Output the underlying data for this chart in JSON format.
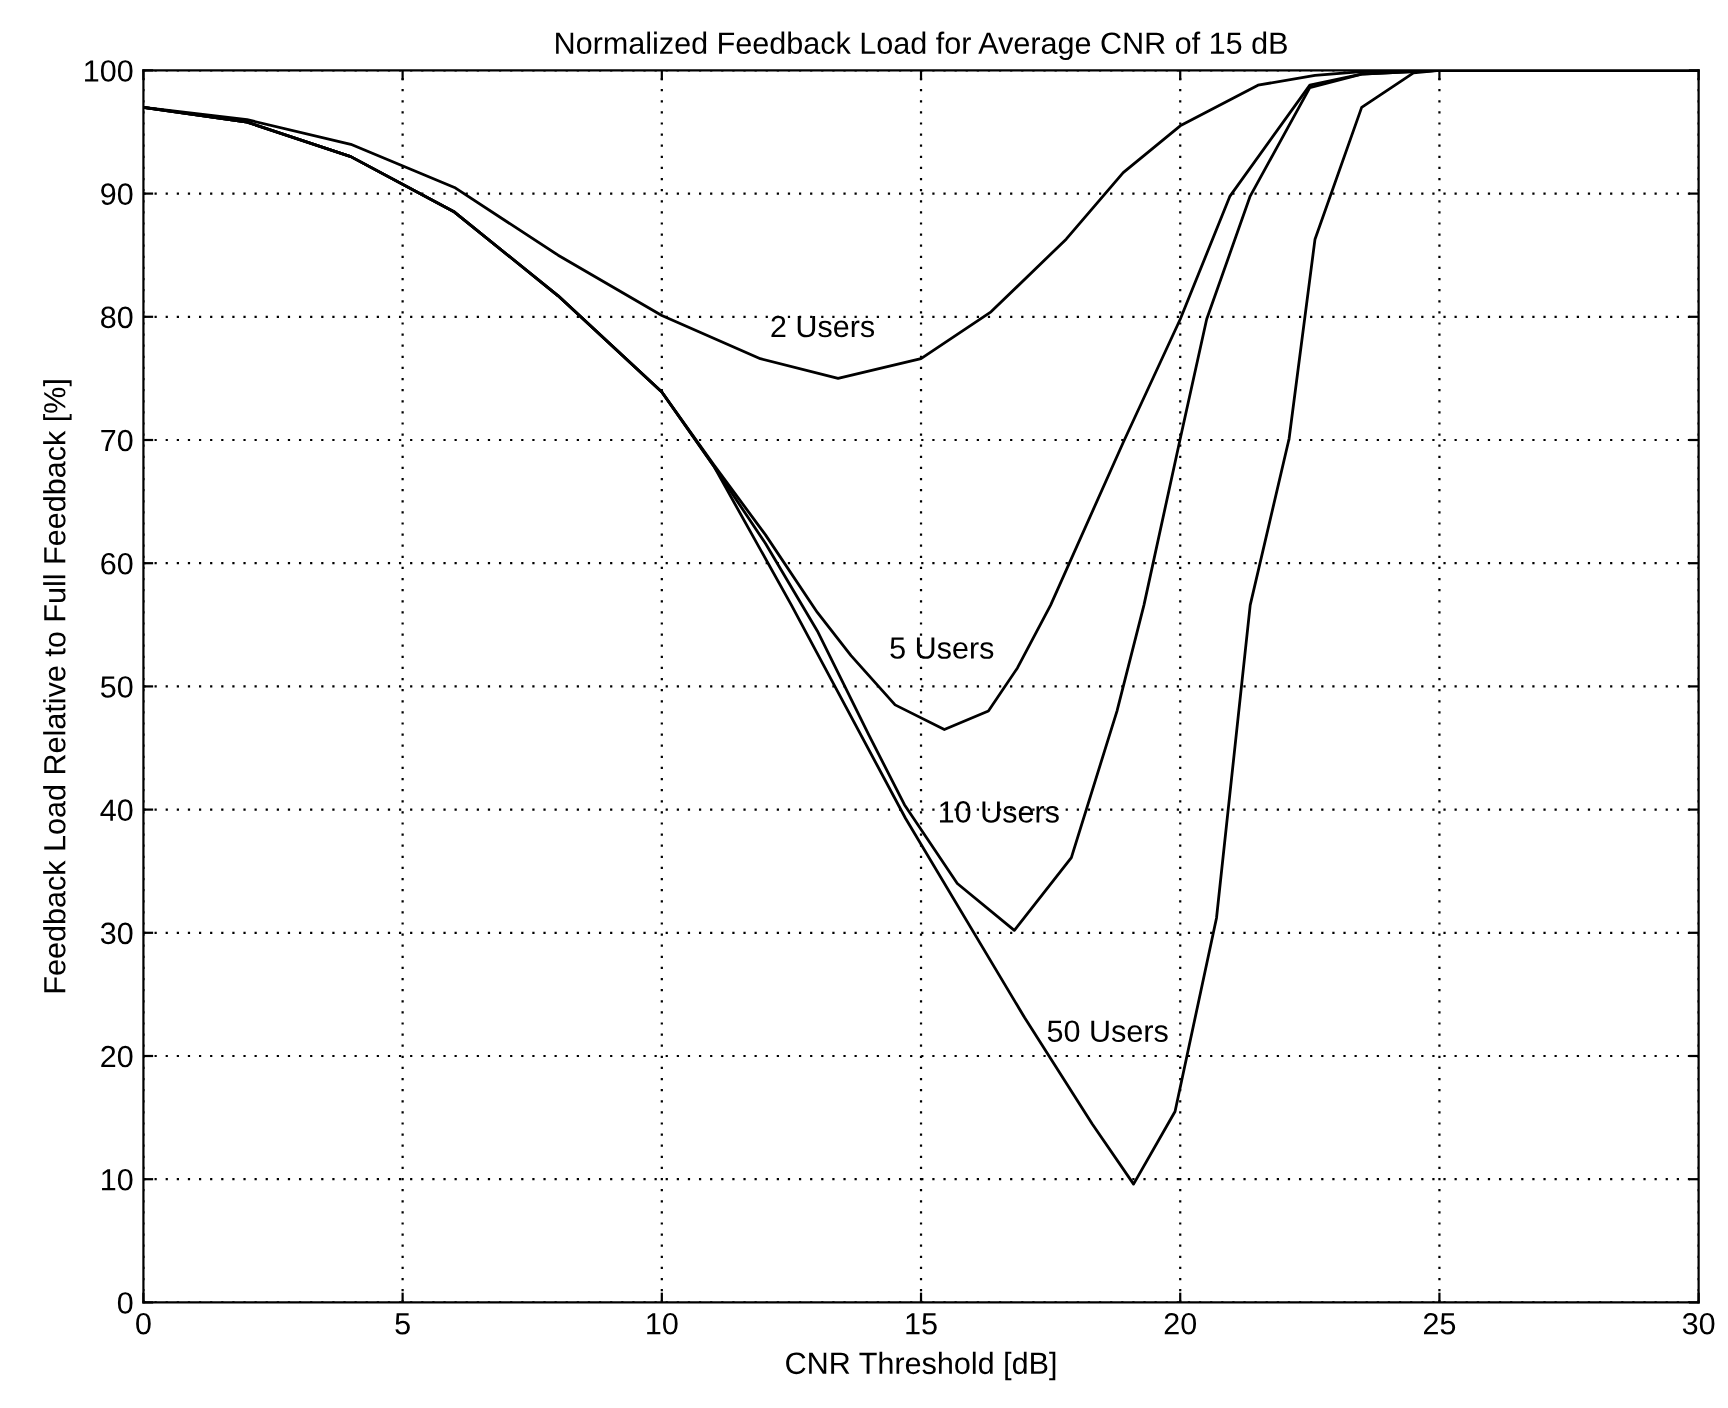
{
  "chart_data": {
    "type": "line",
    "title": "Normalized Feedback Load for Average CNR of 15 dB",
    "xlabel": "CNR Threshold [dB]",
    "ylabel": "Feedback Load Relative to Full Feedback [%]",
    "xlim": [
      0,
      30
    ],
    "xticks": [
      0,
      5,
      10,
      15,
      20,
      25,
      30
    ],
    "ylim": [
      0,
      100
    ],
    "yticks": [
      0,
      10,
      20,
      30,
      40,
      50,
      60,
      70,
      80,
      90,
      100
    ],
    "grid": true,
    "marker": "none",
    "line_style": "solid",
    "series": [
      {
        "name": "2 Users",
        "color": "#000000",
        "x": [
          0,
          2,
          4,
          6,
          8,
          10,
          11.9,
          13.4,
          15,
          16.35,
          17.8,
          18.9,
          20,
          21.5,
          22.6,
          23.5,
          25,
          30
        ],
        "values": [
          97,
          96,
          94,
          90.5,
          85,
          80.1,
          76.6,
          75,
          76.6,
          80.4,
          86.3,
          91.7,
          95.5,
          98.8,
          99.6,
          99.9,
          100,
          100
        ]
      },
      {
        "name": "5 Users",
        "color": "#000000",
        "x": [
          0,
          2,
          4,
          6,
          8,
          10,
          11,
          12,
          13,
          13.65,
          14.5,
          15.45,
          16.3,
          16.86,
          17.5,
          18.9,
          20,
          20.96,
          22.5,
          23.5,
          25,
          30
        ],
        "values": [
          97,
          95.8,
          93,
          88.5,
          81.7,
          73.9,
          68,
          62.3,
          56,
          52.5,
          48.5,
          46.5,
          48,
          51.5,
          56.6,
          69.8,
          79.8,
          89.8,
          98.8,
          99.7,
          100,
          100
        ]
      },
      {
        "name": "10 Users",
        "color": "#000000",
        "x": [
          0,
          2,
          4,
          6,
          8,
          10,
          11,
          12,
          13,
          14,
          14.68,
          15.7,
          16.8,
          17.9,
          18.78,
          19.3,
          20,
          20.51,
          21.35,
          22.5,
          23.5,
          25,
          30
        ],
        "values": [
          97,
          95.8,
          93,
          88.5,
          81.7,
          73.9,
          67.9,
          61.6,
          54.5,
          46,
          40.4,
          34,
          30.2,
          36.1,
          48,
          56.6,
          70.1,
          79.8,
          89.8,
          98.6,
          99.7,
          100,
          100
        ]
      },
      {
        "name": "50 Users",
        "color": "#000000",
        "x": [
          0,
          2,
          4,
          6,
          8,
          10,
          11,
          12.5,
          14.7,
          17,
          18.3,
          19.1,
          19.9,
          20.7,
          21.35,
          22.1,
          22.6,
          23.5,
          24.5,
          25,
          30
        ],
        "values": [
          97,
          95.8,
          93,
          88.5,
          81.7,
          73.9,
          67.9,
          56.6,
          39.3,
          23.1,
          14.5,
          9.6,
          15.5,
          31.2,
          56.6,
          70.1,
          86.3,
          97,
          99.8,
          100,
          100
        ]
      }
    ]
  }
}
